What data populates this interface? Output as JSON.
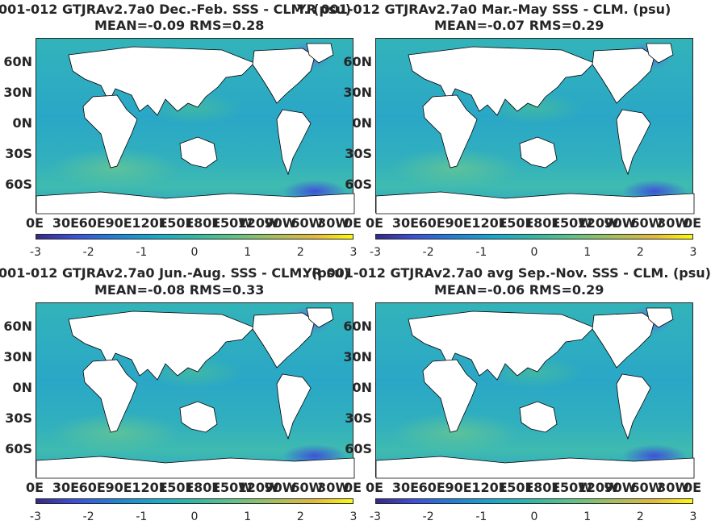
{
  "colors": {
    "land": "#ffffff",
    "ocean_mid": "#2ea8c4",
    "cmap_low": "#352a87",
    "cmap_high": "#f9fb0e"
  },
  "panels": [
    {
      "title": "001-012 GTJRAv2.7a0  Dec.-Feb. SSS - CLM. (psu)",
      "stats": "MEAN=-0.09   RMS=0.28"
    },
    {
      "title": "YR 001-012 GTJRAv2.7a0 Mar.-May SSS - CLM. (psu)",
      "stats": "MEAN=-0.07   RMS=0.29"
    },
    {
      "title": "001-012 GTJRAv2.7a0 Jun.-Aug. SSS - CLM. (psu)",
      "stats": "MEAN=-0.08   RMS=0.33"
    },
    {
      "title": "YR 001-012 GTJRAv2.7a0 avg Sep.-Nov. SSS - CLM. (psu)",
      "stats": "MEAN=-0.06   RMS=0.29"
    }
  ],
  "lat_labels": [
    "60N",
    "30N",
    "0N",
    "30S",
    "60S"
  ],
  "lon_labels": [
    "0E",
    "30E",
    "60E",
    "90E",
    "120E",
    "150E",
    "180E",
    "150W",
    "120W",
    "90W",
    "60W",
    "30W",
    "0E"
  ],
  "colorbar_ticks": [
    "-3",
    "-2",
    "-1",
    "0",
    "1",
    "2",
    "3"
  ]
}
